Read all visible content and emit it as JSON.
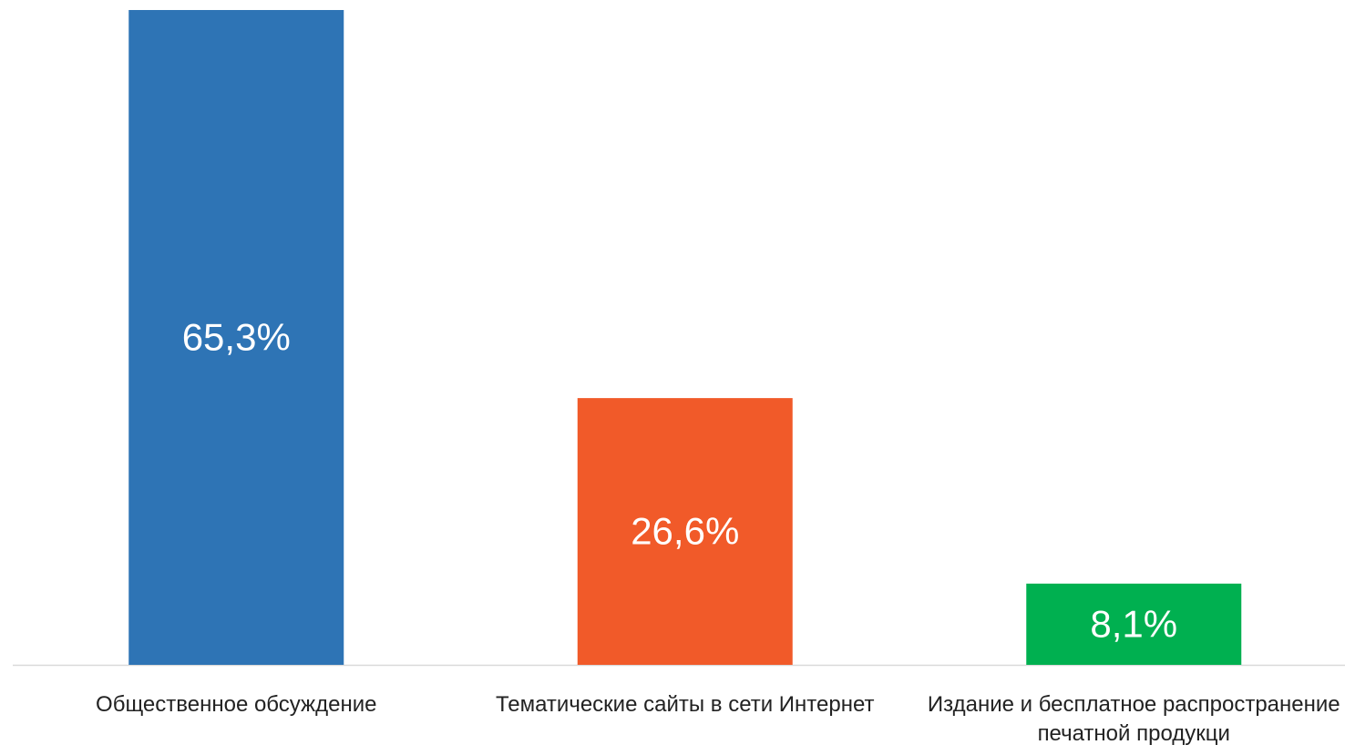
{
  "chart_data": {
    "type": "bar",
    "categories": [
      "Общественное обсуждение",
      "Тематические сайты в сети Интернет",
      "Издание и бесплатное распространение печатной продукци"
    ],
    "values": [
      65.3,
      26.6,
      8.1
    ],
    "value_labels": [
      "65,3%",
      "26,6%",
      "8,1%"
    ],
    "colors": [
      "#2e74b5",
      "#f15a29",
      "#00b050"
    ]
  }
}
